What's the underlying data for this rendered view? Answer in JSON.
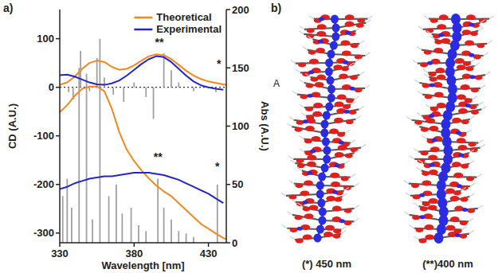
{
  "chart_data": {
    "type": "line",
    "panel_label": "a)",
    "x_label": "Wavelength [nm]",
    "y_label": "CD (A.U.)",
    "y2_label": "Abs (A.U.)",
    "xlim": [
      330,
      442
    ],
    "xticks": [
      330,
      380,
      430
    ],
    "ylim": [
      -320,
      160
    ],
    "yticks": [
      100,
      0,
      -100,
      -200,
      -300
    ],
    "y2lim": [
      0,
      200
    ],
    "y2ticks": [
      0,
      50,
      100,
      150,
      200
    ],
    "legend": "top-right",
    "hlines": [
      {
        "value": 0,
        "line_style": "dotted"
      }
    ],
    "annotations": [
      {
        "text": "**",
        "x": 397,
        "y": 85
      },
      {
        "text": "*",
        "x": 437,
        "y": 40
      },
      {
        "text": "**",
        "x": 396,
        "y": 70,
        "axis": "y2"
      },
      {
        "text": "*",
        "x": 436,
        "y": 62,
        "axis": "y2"
      }
    ],
    "series": [
      {
        "name": "Theoretical",
        "color": "#f7861e",
        "type": "line",
        "x": [
          330,
          335,
          340,
          345,
          350,
          355,
          360,
          365,
          370,
          375,
          380,
          385,
          390,
          395,
          400,
          405,
          410,
          415,
          420,
          425,
          430,
          435,
          440,
          442
        ],
        "values": [
          5,
          10,
          22,
          38,
          50,
          55,
          52,
          42,
          36,
          38,
          45,
          55,
          64,
          68,
          66,
          58,
          46,
          34,
          24,
          17,
          12,
          9,
          6,
          5
        ]
      },
      {
        "name": "Experimental",
        "color": "#2424c8",
        "type": "line",
        "x": [
          330,
          335,
          340,
          345,
          350,
          355,
          360,
          365,
          370,
          375,
          380,
          385,
          390,
          395,
          400,
          405,
          410,
          415,
          420,
          425,
          430,
          435,
          440
        ],
        "values": [
          25,
          26,
          22,
          16,
          10,
          6,
          5,
          8,
          14,
          24,
          36,
          48,
          58,
          64,
          62,
          52,
          38,
          24,
          12,
          4,
          0,
          -3,
          -5
        ]
      },
      {
        "color": "#f7861e",
        "type": "line",
        "axis": "y2",
        "x": [
          330,
          335,
          340,
          345,
          350,
          355,
          360,
          365,
          370,
          375,
          380,
          385,
          390,
          395,
          400,
          405,
          410,
          415,
          420,
          425,
          430,
          435,
          440,
          442
        ],
        "values": [
          112,
          118,
          126,
          132,
          134,
          134,
          130,
          115,
          95,
          80,
          70,
          62,
          55,
          49,
          44,
          40,
          34,
          28,
          22,
          16,
          12,
          8,
          4,
          3
        ]
      },
      {
        "color": "#2424c8",
        "type": "line",
        "axis": "y2",
        "x": [
          330,
          335,
          340,
          345,
          350,
          355,
          360,
          365,
          370,
          375,
          380,
          385,
          390,
          395,
          400,
          405,
          410,
          415,
          420,
          425,
          430,
          435,
          440
        ],
        "values": [
          46,
          48,
          51,
          53,
          55,
          56,
          57,
          57,
          58,
          59,
          60,
          60,
          60,
          59,
          58,
          56,
          54,
          51,
          48,
          45,
          42,
          38,
          34
        ]
      },
      {
        "color": "#a0a0a0",
        "type": "stick",
        "x": [
          336,
          339,
          344,
          350,
          355,
          360,
          366,
          373,
          380,
          388,
          393,
          400,
          405,
          410,
          420,
          435
        ],
        "values": [
          -10,
          -25,
          75,
          -8,
          60,
          20,
          -15,
          -30,
          10,
          -20,
          -65,
          70,
          35,
          10,
          -8,
          -10
        ]
      },
      {
        "color": "#a0a0a0",
        "type": "stick",
        "axis": "y2",
        "x": [
          332,
          335,
          338,
          343,
          348,
          352,
          357,
          363,
          368,
          372,
          378,
          383,
          388,
          396,
          400,
          405,
          410,
          415,
          420,
          436
        ],
        "values": [
          40,
          55,
          30,
          150,
          145,
          20,
          175,
          40,
          50,
          25,
          30,
          15,
          10,
          55,
          30,
          20,
          10,
          8,
          5,
          50
        ]
      }
    ]
  },
  "panel_b": {
    "label": "b)",
    "point_label": "A",
    "captions": [
      "(*) 450 nm",
      "(**)400 nm"
    ]
  }
}
